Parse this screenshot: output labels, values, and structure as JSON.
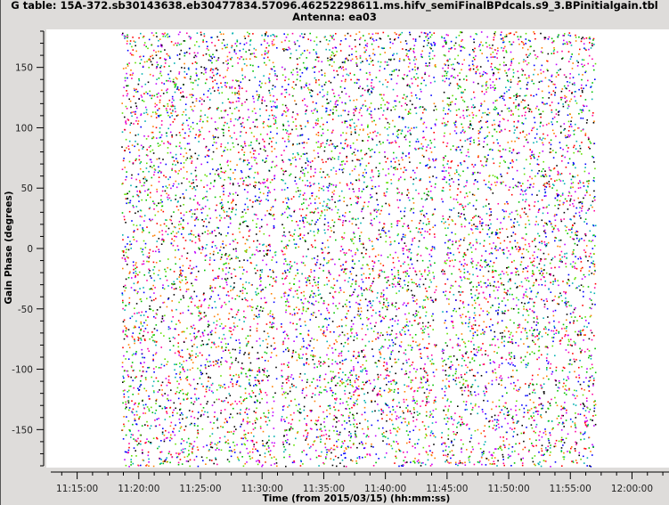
{
  "chart_data": {
    "type": "scatter",
    "title": "G table: 15A-372.sb30143638.eb30477834.57096.46252298611.ms.hifv_semiFinalBPdcals.s9_3.BPinitialgain.tbl",
    "subtitle": "Antenna: ea03",
    "xlabel": "Time (from 2015/03/15) (hh:mm:ss)",
    "ylabel": "Gain Phase (degrees)",
    "xlim": [
      "11:12:30",
      "12:03:00"
    ],
    "ylim": [
      -180,
      180
    ],
    "x_ticks": [
      "11:15:00",
      "11:20:00",
      "11:25:00",
      "11:30:00",
      "11:35:00",
      "11:40:00",
      "11:45:00",
      "11:50:00",
      "11:55:00",
      "12:00:00"
    ],
    "y_ticks": [
      150,
      100,
      50,
      0,
      -50,
      -100,
      -150
    ],
    "grid": false,
    "legend": "none",
    "point_colors": [
      "#000000",
      "#0000ff",
      "#ff0000",
      "#00c000",
      "#ff8000",
      "#c000ff",
      "#ff00a0",
      "#00b0b0",
      "#60e000"
    ],
    "data_segments": [
      {
        "start": "11:18:35",
        "end": "11:31:10",
        "y_range": [
          -180,
          180
        ]
      },
      {
        "start": "11:31:30",
        "end": "11:44:05",
        "y_range": [
          -180,
          180
        ]
      },
      {
        "start": "11:44:30",
        "end": "11:57:00",
        "y_range": [
          -180,
          180
        ]
      }
    ]
  }
}
